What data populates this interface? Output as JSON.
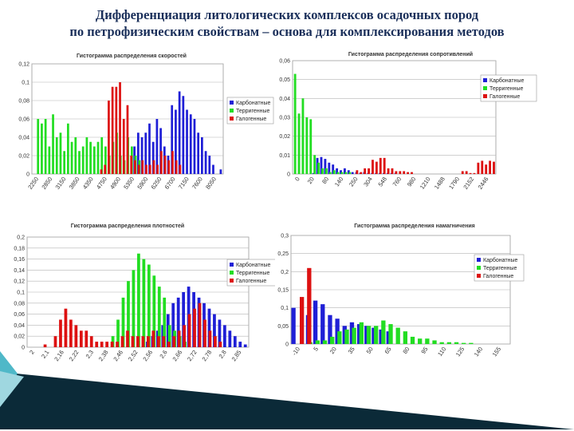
{
  "title_line1": "Дифференциация литологических комплексов осадочных пород",
  "title_line2": "по петрофизическим свойствам – основа для комплексирования методов",
  "colors": {
    "title": "#1a2f5a",
    "carbonate": "#1f1fd6",
    "terrigenous": "#22dd22",
    "halogen": "#dd1111",
    "decor_dark": "#0b2a38",
    "decor_teal": "#4fb8c8"
  },
  "chart_data": [
    {
      "type": "bar",
      "title": "Гистограмма распределения скоростей",
      "legend": [
        "Карбонатные",
        "Терригенные",
        "Галогенные"
      ],
      "legend_position": "right",
      "grid": true,
      "ylim": [
        0,
        0.12
      ],
      "yticks": [
        "0",
        "0,02",
        "0,04",
        "0,06",
        "0,08",
        "0,1",
        "0,12"
      ],
      "xtick_labels": [
        "2250",
        "2850",
        "3150",
        "3850",
        "4350",
        "4750",
        "4900",
        "5350",
        "5900",
        "6250",
        "6700",
        "7150",
        "7600",
        "8050"
      ],
      "series": [
        {
          "values": [
            0,
            0,
            0,
            0,
            0,
            0,
            0,
            0,
            0,
            0,
            0,
            0,
            0,
            0,
            0,
            0,
            0,
            0,
            0,
            0,
            0,
            0,
            0,
            0,
            0,
            0,
            0,
            0.03,
            0.045,
            0.04,
            0.045,
            0.055,
            0.035,
            0.06,
            0.05,
            0.03,
            0.02,
            0.075,
            0.07,
            0.09,
            0.085,
            0.07,
            0.065,
            0.06,
            0.045,
            0.04,
            0.025,
            0.02,
            0.01,
            0,
            0.005
          ]
        },
        {
          "values": [
            0,
            0.06,
            0.055,
            0.06,
            0.03,
            0.065,
            0.04,
            0.045,
            0.025,
            0.055,
            0.035,
            0.04,
            0.025,
            0.03,
            0.04,
            0.035,
            0.03,
            0.035,
            0.04,
            0.03,
            0.02,
            0.035,
            0.045,
            0.02,
            0.015,
            0.04,
            0.03,
            0.02,
            0.015,
            0,
            0,
            0,
            0,
            0,
            0,
            0,
            0,
            0,
            0,
            0,
            0,
            0,
            0,
            0,
            0,
            0,
            0,
            0,
            0,
            0,
            0
          ]
        },
        {
          "values": [
            0,
            0,
            0,
            0,
            0,
            0,
            0,
            0,
            0,
            0,
            0,
            0,
            0,
            0,
            0,
            0,
            0,
            0,
            0.005,
            0.01,
            0.08,
            0.095,
            0.095,
            0.1,
            0.06,
            0.075,
            0.02,
            0.015,
            0.01,
            0.015,
            0.01,
            0.01,
            0.015,
            0.01,
            0.025,
            0.02,
            0.015,
            0.025,
            0.015,
            0.01,
            0,
            0,
            0,
            0,
            0,
            0,
            0,
            0,
            0,
            0,
            0
          ]
        }
      ]
    },
    {
      "type": "bar",
      "title": "Гистограмма распределения сопротивлений",
      "legend": [
        "Карбонатные",
        "Терригенные",
        "Галогенные"
      ],
      "legend_position": "right",
      "grid": true,
      "ylim": [
        0,
        0.06
      ],
      "yticks": [
        "0",
        "0,01",
        "0,02",
        "0,03",
        "0,04",
        "0,05",
        "0,06"
      ],
      "xtick_labels": [
        "0",
        "20",
        "80",
        "140",
        "250",
        "304",
        "548",
        "760",
        "980",
        "1210",
        "1488",
        "1790",
        "2152",
        "2446"
      ],
      "series": [
        {
          "values": [
            0,
            0,
            0,
            0,
            0,
            0.0005,
            0.0085,
            0.009,
            0.008,
            0.006,
            0.005,
            0.003,
            0.002,
            0.003,
            0.002,
            0.001,
            0.001,
            0.0005,
            0.001,
            0.0005,
            0.0005,
            0.0005,
            0.0005,
            0.0005,
            0.0005,
            0.0005,
            0.0005,
            0,
            0,
            0,
            0,
            0,
            0,
            0,
            0,
            0,
            0,
            0,
            0,
            0,
            0,
            0,
            0,
            0,
            0,
            0,
            0,
            0,
            0,
            0,
            0,
            0
          ]
        },
        {
          "values": [
            0.053,
            0.032,
            0.04,
            0.03,
            0.029,
            0.01,
            0.006,
            0.003,
            0.003,
            0.001,
            0.002,
            0.001,
            0.001,
            0.001,
            0.001,
            0,
            0,
            0,
            0,
            0,
            0,
            0,
            0,
            0,
            0,
            0,
            0,
            0,
            0,
            0,
            0,
            0,
            0,
            0,
            0,
            0,
            0,
            0,
            0,
            0,
            0,
            0,
            0,
            0,
            0,
            0,
            0,
            0,
            0,
            0,
            0,
            0
          ]
        },
        {
          "values": [
            0,
            0,
            0,
            0,
            0,
            0,
            0,
            0,
            0,
            0,
            0,
            0,
            0,
            0,
            0,
            0,
            0.002,
            0.001,
            0.003,
            0.003,
            0.0075,
            0.0065,
            0.0085,
            0.0085,
            0.003,
            0.003,
            0.0015,
            0.0015,
            0.0015,
            0.001,
            0.001,
            0,
            0,
            0,
            0,
            0,
            0,
            0,
            0,
            0,
            0,
            0,
            0,
            0.0015,
            0.0015,
            0.0005,
            0.0005,
            0.006,
            0.007,
            0.005,
            0.007,
            0.0065
          ]
        }
      ]
    },
    {
      "type": "bar",
      "title": "Гистограмма распределения плотностей",
      "legend": [
        "Карбонатные",
        "Терригенные",
        "Галогенные"
      ],
      "legend_position": "right",
      "grid": true,
      "ylim": [
        0,
        0.2
      ],
      "yticks": [
        "0",
        "0,02",
        "0,04",
        "0,06",
        "0,08",
        "0,1",
        "0,12",
        "0,14",
        "0,16",
        "0,18",
        "0,2"
      ],
      "xtick_labels": [
        "2",
        "2,1",
        "2,16",
        "2,22",
        "2,3",
        "2,38",
        "2,46",
        "2,52",
        "2,56",
        "2,6",
        "2,66",
        "2,72",
        "2,78",
        "2,8",
        "2,85"
      ],
      "series": [
        {
          "values": [
            0,
            0,
            0,
            0,
            0,
            0,
            0,
            0,
            0,
            0,
            0,
            0,
            0,
            0,
            0,
            0,
            0,
            0,
            0,
            0,
            0,
            0,
            0,
            0.01,
            0.02,
            0.03,
            0.04,
            0.06,
            0.08,
            0.09,
            0.1,
            0.11,
            0.1,
            0.09,
            0.08,
            0.07,
            0.06,
            0.05,
            0.04,
            0.03,
            0.02,
            0.01,
            0.005
          ]
        },
        {
          "values": [
            0,
            0,
            0,
            0,
            0,
            0,
            0,
            0,
            0,
            0,
            0,
            0,
            0,
            0,
            0,
            0,
            0.02,
            0.05,
            0.09,
            0.12,
            0.14,
            0.17,
            0.16,
            0.15,
            0.13,
            0.11,
            0.09,
            0.04,
            0.03,
            0.02,
            0.01,
            0,
            0,
            0,
            0,
            0,
            0,
            0,
            0,
            0,
            0,
            0,
            0
          ]
        },
        {
          "values": [
            0,
            0,
            0,
            0.005,
            0,
            0.02,
            0.05,
            0.07,
            0.05,
            0.04,
            0.03,
            0.03,
            0.02,
            0.01,
            0.01,
            0.01,
            0.01,
            0.01,
            0.02,
            0.03,
            0.02,
            0.02,
            0.02,
            0.02,
            0.03,
            0.02,
            0.02,
            0.01,
            0.02,
            0.03,
            0.04,
            0.06,
            0.07,
            0.08,
            0.05,
            0.03,
            0.02,
            0.01,
            0,
            0,
            0,
            0,
            0
          ]
        }
      ]
    },
    {
      "type": "bar",
      "title": "Гистограмма распределения намагничения",
      "legend": [
        "Карбонатные",
        "Терригенные",
        "Галогенные"
      ],
      "legend_position": "right",
      "grid": true,
      "ylim": [
        0,
        0.3
      ],
      "yticks": [
        "0",
        "0,05",
        "0,1",
        "0,15",
        "0,2",
        "0,25",
        "0,3"
      ],
      "xtick_labels": [
        "-10",
        "5",
        "20",
        "35",
        "50",
        "65",
        "80",
        "95",
        "110",
        "125",
        "140",
        "155"
      ],
      "series": [
        {
          "values": [
            0.1,
            0,
            0.08,
            0.12,
            0.11,
            0.08,
            0.07,
            0.05,
            0.06,
            0.055,
            0.05,
            0.045,
            0.04,
            0.035,
            0,
            0,
            0,
            0,
            0,
            0,
            0,
            0,
            0,
            0,
            0,
            0,
            0,
            0,
            0,
            0
          ]
        },
        {
          "values": [
            0,
            0,
            0.005,
            0.01,
            0.01,
            0.02,
            0.035,
            0.04,
            0.045,
            0.06,
            0.05,
            0.05,
            0.065,
            0.055,
            0.045,
            0.035,
            0.02,
            0.015,
            0.015,
            0.01,
            0.005,
            0.005,
            0.005,
            0.003,
            0.003,
            0,
            0,
            0,
            0,
            0
          ]
        },
        {
          "values": [
            0,
            0.13,
            0.21,
            0,
            0,
            0,
            0,
            0,
            0,
            0,
            0,
            0,
            0,
            0,
            0,
            0,
            0,
            0,
            0,
            0,
            0,
            0,
            0,
            0,
            0,
            0,
            0,
            0,
            0,
            0
          ]
        }
      ]
    }
  ]
}
